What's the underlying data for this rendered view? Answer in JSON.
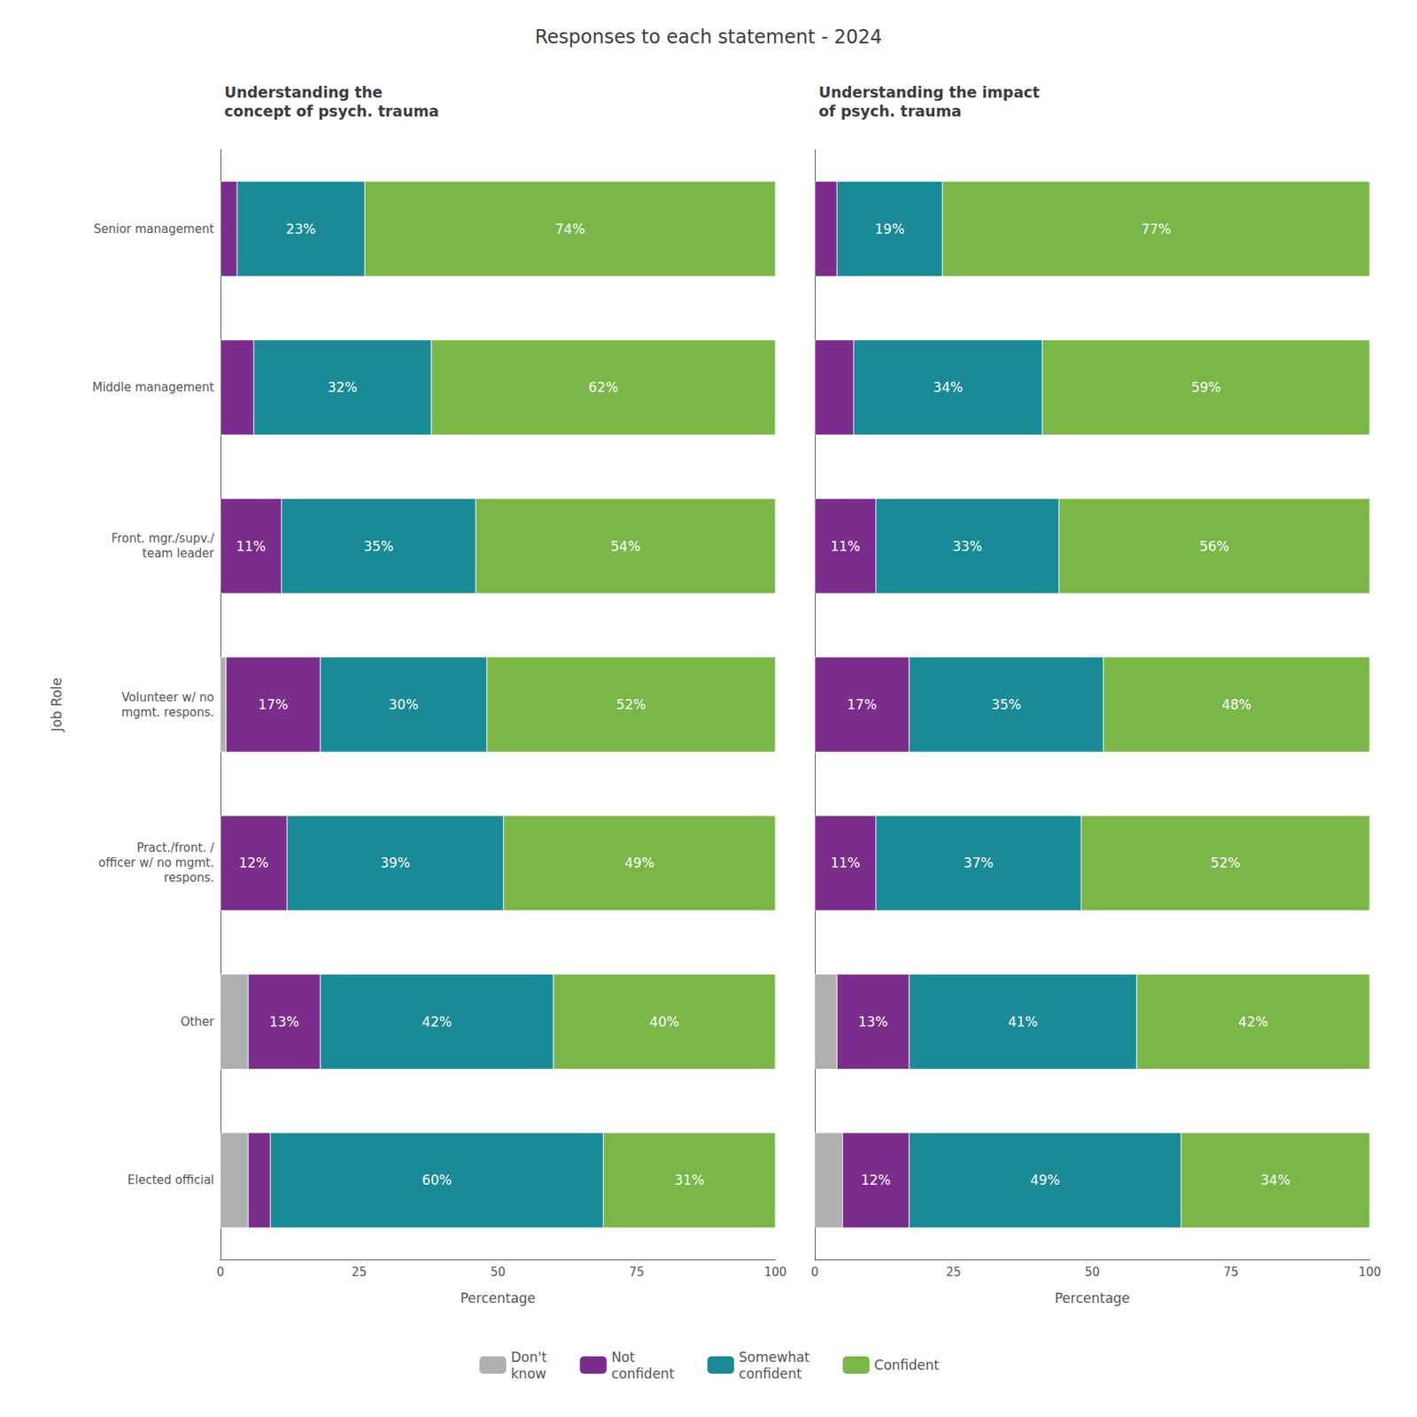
{
  "title": "Responses to each statement - 2024",
  "chart_data": [
    {
      "type": "bar",
      "orientation": "horizontal",
      "stacked": true,
      "grid": false,
      "legend": "bottom",
      "data_labels": true,
      "title": "Understanding the\nconcept of psych. trauma",
      "xlabel": "Percentage",
      "ylabel": "Job Role",
      "categories": [
        "Senior management",
        "Middle management",
        "Front. mgr./supv./\nteam leader",
        "Volunteer w/ no\nmgmt. respons.",
        "Pract./front. /\nofficer w/ no mgmt.\nrespons.",
        "Other",
        "Elected official"
      ],
      "xlim": [
        0,
        100
      ],
      "xticks": [
        0,
        25,
        50,
        75,
        100
      ],
      "series": [
        {
          "name": "Don't\nknow",
          "color": "#b0b0b0",
          "values": [
            0,
            0,
            0,
            1,
            0,
            5,
            5
          ],
          "value_labels": [
            null,
            null,
            null,
            null,
            null,
            null,
            null
          ]
        },
        {
          "name": "Not\nconfident",
          "color": "#7b2d8b",
          "values": [
            3,
            6,
            11,
            17,
            12,
            13,
            4
          ],
          "value_labels": [
            null,
            null,
            "11%",
            "17%",
            "12%",
            "13%",
            null
          ]
        },
        {
          "name": "Somewhat\nconfident",
          "color": "#1a8a96",
          "values": [
            23,
            32,
            35,
            30,
            39,
            42,
            60
          ],
          "value_labels": [
            "23%",
            "32%",
            "35%",
            "30%",
            "39%",
            "42%",
            "60%"
          ]
        },
        {
          "name": "Confident",
          "color": "#7ab648",
          "values": [
            74,
            62,
            54,
            52,
            49,
            40,
            31
          ],
          "value_labels": [
            "74%",
            "62%",
            "54%",
            "52%",
            "49%",
            "40%",
            "31%"
          ]
        }
      ]
    },
    {
      "type": "bar",
      "orientation": "horizontal",
      "stacked": true,
      "grid": false,
      "legend": "bottom",
      "data_labels": true,
      "tick_labels": "x",
      "title": "Understanding the impact\nof psych. trauma",
      "xlabel": "Percentage",
      "categories": [
        "Senior management",
        "Middle management",
        "Front. mgr./supv./\nteam leader",
        "Volunteer w/ no\nmgmt. respons.",
        "Pract./front. /\nofficer w/ no mgmt.\nrespons.",
        "Other",
        "Elected official"
      ],
      "xlim": [
        0,
        100
      ],
      "xticks": [
        0,
        25,
        50,
        75,
        100
      ],
      "series": [
        {
          "name": "Don't\nknow",
          "color": "#b0b0b0",
          "values": [
            0,
            0,
            0,
            0,
            0,
            4,
            5
          ],
          "value_labels": [
            null,
            null,
            null,
            null,
            null,
            null,
            null
          ]
        },
        {
          "name": "Not\nconfident",
          "color": "#7b2d8b",
          "values": [
            4,
            7,
            11,
            17,
            11,
            13,
            12
          ],
          "value_labels": [
            null,
            null,
            "11%",
            "17%",
            "11%",
            "13%",
            "12%"
          ]
        },
        {
          "name": "Somewhat\nconfident",
          "color": "#1a8a96",
          "values": [
            19,
            34,
            33,
            35,
            37,
            41,
            49
          ],
          "value_labels": [
            "19%",
            "34%",
            "33%",
            "35%",
            "37%",
            "41%",
            "49%"
          ]
        },
        {
          "name": "Confident",
          "color": "#7ab648",
          "values": [
            77,
            59,
            56,
            48,
            52,
            42,
            34
          ],
          "value_labels": [
            "77%",
            "59%",
            "56%",
            "48%",
            "52%",
            "42%",
            "34%"
          ]
        }
      ]
    }
  ]
}
